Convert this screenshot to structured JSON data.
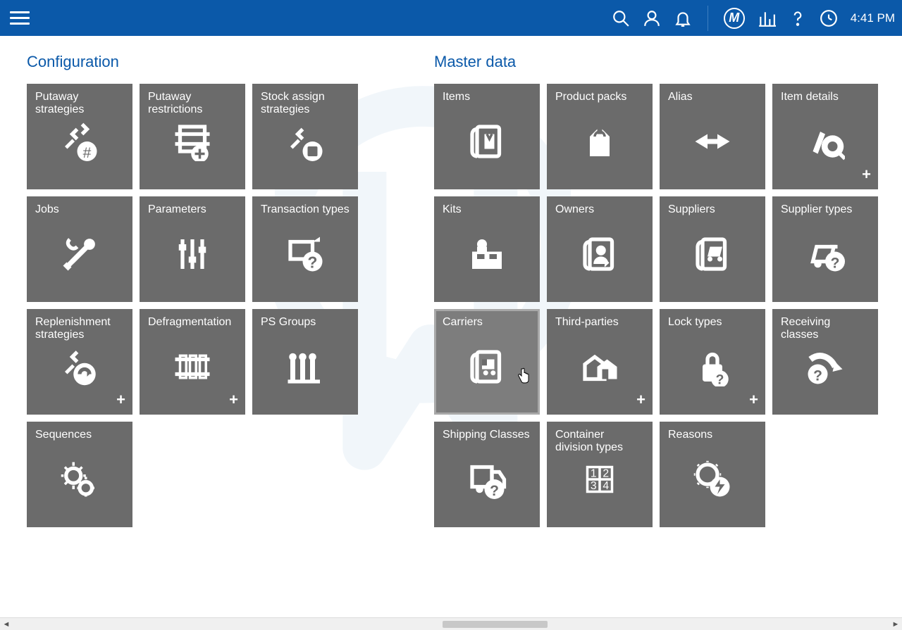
{
  "topbar": {
    "time": "4:41 PM",
    "logo_letter": "M"
  },
  "sections": {
    "config": {
      "title": "Configuration",
      "tiles": [
        {
          "label": "Putaway strategies",
          "icon": "putaway-strat",
          "plus": false
        },
        {
          "label": "Putaway restrictions",
          "icon": "putaway-restrict",
          "plus": false
        },
        {
          "label": "Stock assign strategies",
          "icon": "stock-assign",
          "plus": false
        },
        {
          "label": "Jobs",
          "icon": "jobs",
          "plus": false
        },
        {
          "label": "Parameters",
          "icon": "parameters",
          "plus": false
        },
        {
          "label": "Transaction types",
          "icon": "transaction",
          "plus": false
        },
        {
          "label": "Replenishment strategies",
          "icon": "replenish",
          "plus": true
        },
        {
          "label": "Defragmentation",
          "icon": "defrag",
          "plus": true
        },
        {
          "label": "PS Groups",
          "icon": "psgroups",
          "plus": false
        },
        {
          "label": "Sequences",
          "icon": "sequences",
          "plus": false
        }
      ]
    },
    "master": {
      "title": "Master data",
      "tiles": [
        {
          "label": "Items",
          "icon": "items",
          "plus": false
        },
        {
          "label": "Product packs",
          "icon": "packs",
          "plus": false
        },
        {
          "label": "Alias",
          "icon": "alias",
          "plus": false
        },
        {
          "label": "Item details",
          "icon": "itemdetails",
          "plus": true
        },
        {
          "label": "Kits",
          "icon": "kits",
          "plus": false
        },
        {
          "label": "Owners",
          "icon": "owners",
          "plus": false
        },
        {
          "label": "Suppliers",
          "icon": "suppliers",
          "plus": false
        },
        {
          "label": "Supplier types",
          "icon": "suppliertypes",
          "plus": false
        },
        {
          "label": "Carriers",
          "icon": "carriers",
          "plus": false,
          "hover": true
        },
        {
          "label": "Third-parties",
          "icon": "thirdparties",
          "plus": true
        },
        {
          "label": "Lock types",
          "icon": "locktypes",
          "plus": true
        },
        {
          "label": "Receiving classes",
          "icon": "receiving",
          "plus": false
        },
        {
          "label": "Shipping Classes",
          "icon": "shipping",
          "plus": false
        },
        {
          "label": "Container division types",
          "icon": "container",
          "plus": false
        },
        {
          "label": "Reasons",
          "icon": "reasons",
          "plus": false
        }
      ]
    }
  },
  "colors": {
    "topbar_bg": "#0b59a9",
    "tile_bg": "#6b6b6b",
    "tile_hover_bg": "#7d7d7d",
    "section_title": "#0b59a9",
    "watermark": "#c9ddef"
  }
}
